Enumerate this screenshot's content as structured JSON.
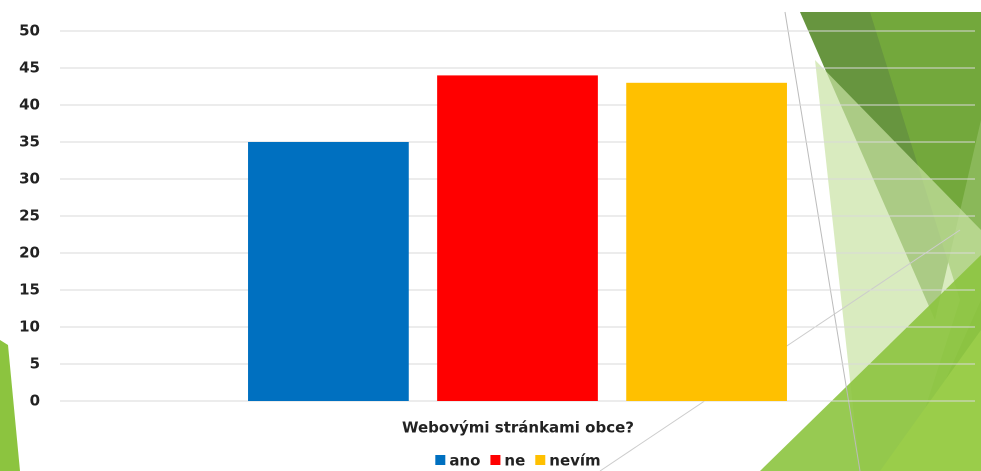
{
  "chart_data": {
    "type": "bar",
    "categories": [
      "Webovými stránkami obce?"
    ],
    "series": [
      {
        "name": "ano",
        "color": "#0070c0",
        "values": [
          35
        ]
      },
      {
        "name": "ne",
        "color": "#ff0000",
        "values": [
          44
        ]
      },
      {
        "name": "nevím",
        "color": "#ffc000",
        "values": [
          43
        ]
      }
    ],
    "ylim": [
      0,
      50
    ],
    "yticks": [
      0,
      5,
      10,
      15,
      20,
      25,
      30,
      35,
      40,
      45,
      50
    ],
    "grid": true,
    "legend": "bottom"
  }
}
